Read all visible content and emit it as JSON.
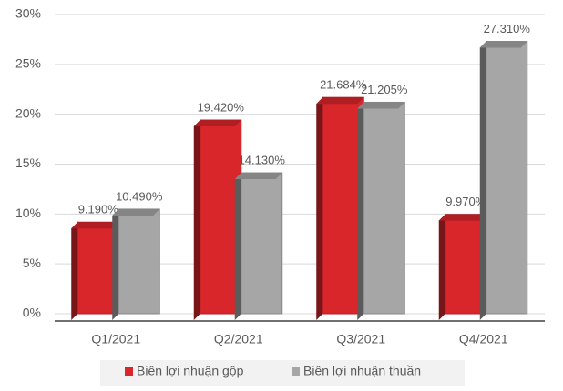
{
  "chart_data": {
    "type": "bar",
    "categories": [
      "Q1/2021",
      "Q2/2021",
      "Q3/2021",
      "Q4/2021"
    ],
    "series": [
      {
        "name": "Biên lợi nhuận gộp",
        "color": "#d9262b",
        "values": [
          9.19,
          19.42,
          21.684,
          9.97
        ],
        "value_labels": [
          "9.190%",
          "19.420%",
          "21.684%",
          "9.970%"
        ]
      },
      {
        "name": "Biên lợi nhuận thuần",
        "color": "#a6a6a6",
        "values": [
          10.49,
          14.13,
          21.205,
          27.31
        ],
        "value_labels": [
          "10.490%",
          "14.130%",
          "21.205%",
          "27.310%"
        ]
      }
    ],
    "ylim": [
      0,
      30
    ],
    "yticks": [
      {
        "value": 0,
        "label": "0%"
      },
      {
        "value": 5,
        "label": "5%"
      },
      {
        "value": 10,
        "label": "10%"
      },
      {
        "value": 15,
        "label": "15%"
      },
      {
        "value": 20,
        "label": "20%"
      },
      {
        "value": 25,
        "label": "25%"
      },
      {
        "value": 30,
        "label": "30%"
      }
    ],
    "grid": true
  }
}
